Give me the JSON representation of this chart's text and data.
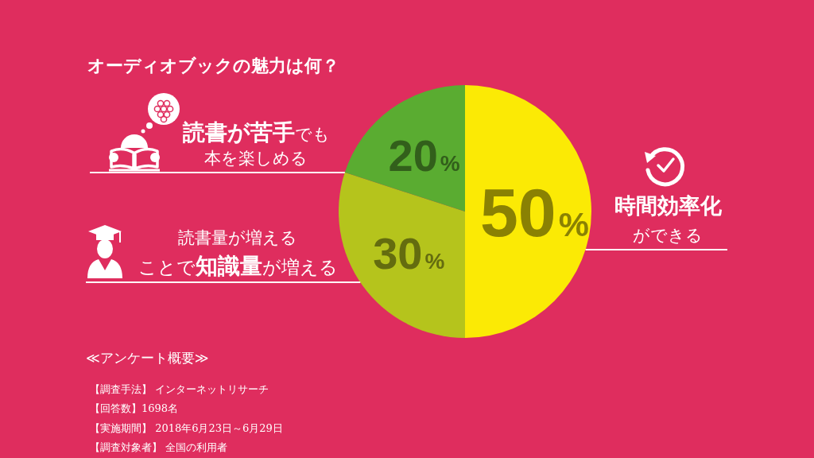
{
  "chart_data": {
    "type": "pie",
    "title": "オーディオブックの魅力は何？",
    "categories": [
      "**時間効率化**ができる",
      "読書量が増えることで**知識量**が増える",
      "**読書が苦手**でも本を楽しめる"
    ],
    "values": [
      50,
      30,
      20
    ],
    "colors": [
      "#fbea05",
      "#b5c41c",
      "#5aac31"
    ],
    "value_labels": [
      "50%",
      "30%",
      "20%"
    ],
    "annotations": [
      "≪アンケート概要≫",
      "【調査手法】 インターネットリサーチ",
      "【回答数】1698名",
      "【実施期間】 2018年6月23日～6月29日",
      "【調査対象者】 全国の利用者"
    ]
  }
}
